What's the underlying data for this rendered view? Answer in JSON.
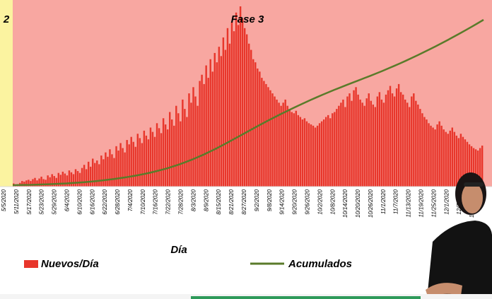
{
  "chart_data": {
    "type": "bar",
    "title": "",
    "xlabel": "Día",
    "ylabel": "",
    "phases": [
      {
        "label": "2",
        "start_index": 0,
        "end_index": 0,
        "color": "#fbf3a0"
      },
      {
        "label": "Fase 3",
        "start_index": 1,
        "end_index": 220,
        "color": "#f8a7a1"
      }
    ],
    "tick_labels": [
      "5/5/2020",
      "5/11/2020",
      "5/17/2020",
      "5/23/2020",
      "5/29/2020",
      "6/4/2020",
      "6/10/2020",
      "6/16/2020",
      "6/22/2020",
      "6/28/2020",
      "7/4/2020",
      "7/10/2020",
      "7/16/2020",
      "7/22/2020",
      "7/28/2020",
      "8/3/2020",
      "8/9/2020",
      "8/15/2020",
      "8/21/2020",
      "8/27/2020",
      "9/2/2020",
      "9/8/2020",
      "9/14/2020",
      "9/20/2020",
      "9/26/2020",
      "10/2/2020",
      "10/8/2020",
      "10/14/2020",
      "10/20/2020",
      "10/26/2020",
      "11/1/2020",
      "11/7/2020",
      "11/13/2020",
      "11/19/2020",
      "11/25/2020",
      "12/1/2020",
      "12/7/2020",
      "12/13/2020"
    ],
    "series": [
      {
        "name": "Nuevos/Día",
        "kind": "bar",
        "color": "#e8362b",
        "values": [
          5,
          3,
          4,
          6,
          9,
          8,
          10,
          11,
          9,
          12,
          14,
          10,
          13,
          16,
          12,
          11,
          18,
          15,
          20,
          17,
          14,
          22,
          19,
          24,
          21,
          18,
          26,
          23,
          20,
          28,
          25,
          22,
          30,
          35,
          28,
          40,
          32,
          45,
          38,
          42,
          36,
          50,
          44,
          55,
          48,
          60,
          52,
          46,
          65,
          58,
          70,
          62,
          55,
          75,
          68,
          80,
          72,
          64,
          85,
          78,
          70,
          90,
          82,
          76,
          95,
          88,
          80,
          102,
          94,
          86,
          110,
          100,
          92,
          120,
          108,
          98,
          130,
          118,
          105,
          140,
          125,
          112,
          150,
          135,
          160,
          145,
          130,
          170,
          180,
          165,
          195,
          175,
          205,
          185,
          215,
          200,
          225,
          210,
          240,
          220,
          255,
          230,
          265,
          250,
          280,
          260,
          290,
          270,
          255,
          245,
          230,
          220,
          205,
          200,
          190,
          185,
          175,
          170,
          165,
          160,
          155,
          150,
          145,
          140,
          135,
          130,
          135,
          140,
          130,
          125,
          120,
          118,
          122,
          115,
          112,
          108,
          110,
          105,
          102,
          100,
          98,
          95,
          98,
          102,
          105,
          108,
          112,
          115,
          110,
          118,
          120,
          125,
          130,
          135,
          140,
          128,
          145,
          150,
          138,
          155,
          160,
          148,
          140,
          135,
          130,
          142,
          150,
          138,
          132,
          128,
          145,
          152,
          140,
          135,
          148,
          155,
          162,
          150,
          145,
          158,
          165,
          152,
          148,
          140,
          135,
          128,
          145,
          150,
          138,
          132,
          125,
          118,
          112,
          108,
          102,
          98,
          95,
          92,
          100,
          105,
          98,
          92,
          88,
          85,
          90,
          95,
          88,
          82,
          78,
          85,
          80,
          76,
          72,
          68,
          65,
          62,
          60,
          58,
          62,
          66
        ],
        "peaks_note": ""
      },
      {
        "name": "Acumulados",
        "kind": "line",
        "color": "#5a7b2a",
        "values": [
          0,
          0.2,
          0.4,
          0.6,
          0.9,
          1.2,
          1.5,
          1.9,
          2.3,
          2.8,
          3.4,
          4.0,
          4.7,
          5.5,
          6.4,
          7.4,
          8.5,
          9.7,
          11.0,
          12.4,
          13.9,
          15.6,
          17.4,
          19.4,
          21.6,
          24.0,
          26.6,
          29.5,
          32.6,
          36.0,
          39.6,
          43.5,
          47.6,
          52.0,
          56.6,
          61.4,
          66.3,
          71.3,
          76.4,
          81.5,
          86.6,
          91.6,
          96.6,
          101.5,
          106.3,
          111.0,
          115.6,
          120.1,
          124.5,
          128.8,
          133.0,
          137.1,
          141.1,
          145.0,
          148.8,
          152.5,
          156.2,
          159.8,
          163.4,
          167.0,
          170.6,
          174.3,
          178.1,
          182.0,
          186.0,
          190.1,
          194.3,
          198.6,
          203.0,
          207.5,
          212.1,
          216.8,
          221.6,
          226.5,
          231.5,
          236.6,
          241.8,
          247.1,
          252.5,
          258.0
        ],
        "ylim_note": ""
      }
    ],
    "legend": [
      {
        "label": "Nuevos/Día",
        "color": "#e8362b",
        "kind": "bar"
      },
      {
        "label": "Acumulados",
        "color": "#5a7b2a",
        "kind": "line"
      }
    ],
    "legend_position": "bottom",
    "grid": false
  }
}
